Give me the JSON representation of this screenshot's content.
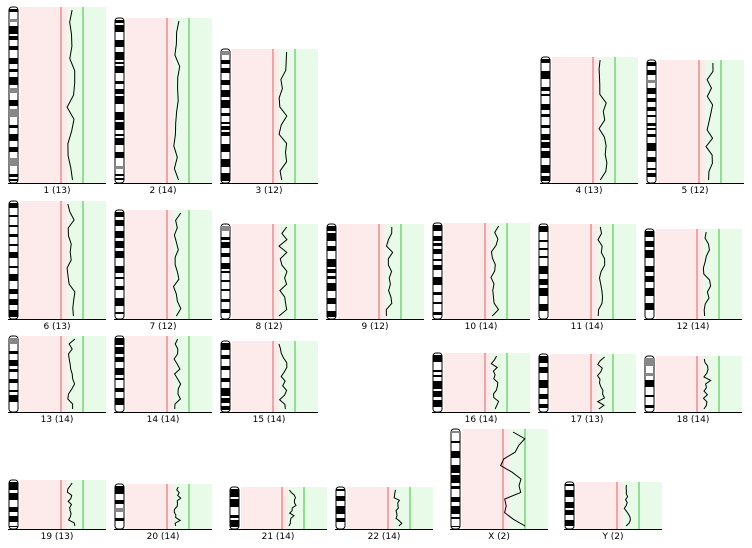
{
  "colors": {
    "loss_zone": "#fdeaea",
    "gain_zone": "#e8fbe8",
    "loss_line": "#e46060",
    "gain_line": "#40c040",
    "profile_line": "#000000",
    "band_dark": "#000000",
    "band_gray": "#888888",
    "band_light": "#ffffff"
  },
  "chromosomes": [
    {
      "name": "1",
      "label": "1 (13)"
    },
    {
      "name": "2",
      "label": "2 (14)"
    },
    {
      "name": "3",
      "label": "3 (12)"
    },
    {
      "name": "4",
      "label": "4 (13)"
    },
    {
      "name": "5",
      "label": "5 (12)"
    },
    {
      "name": "6",
      "label": "6 (13)"
    },
    {
      "name": "7",
      "label": "7 (12)"
    },
    {
      "name": "8",
      "label": "8 (12)"
    },
    {
      "name": "9",
      "label": "9 (12)"
    },
    {
      "name": "10",
      "label": "10 (14)"
    },
    {
      "name": "11",
      "label": "11 (14)"
    },
    {
      "name": "12",
      "label": "12 (14)"
    },
    {
      "name": "13",
      "label": "13 (14)"
    },
    {
      "name": "14",
      "label": "14 (14)"
    },
    {
      "name": "15",
      "label": "15 (14)"
    },
    {
      "name": "16",
      "label": "16 (14)"
    },
    {
      "name": "17",
      "label": "17 (13)"
    },
    {
      "name": "18",
      "label": "18 (14)"
    },
    {
      "name": "19",
      "label": "19 (13)"
    },
    {
      "name": "20",
      "label": "20 (14)"
    },
    {
      "name": "21",
      "label": "21 (14)"
    },
    {
      "name": "22",
      "label": "22 (14)"
    },
    {
      "name": "X",
      "label": "X (2)"
    },
    {
      "name": "Y",
      "label": "Y (2)"
    }
  ]
}
